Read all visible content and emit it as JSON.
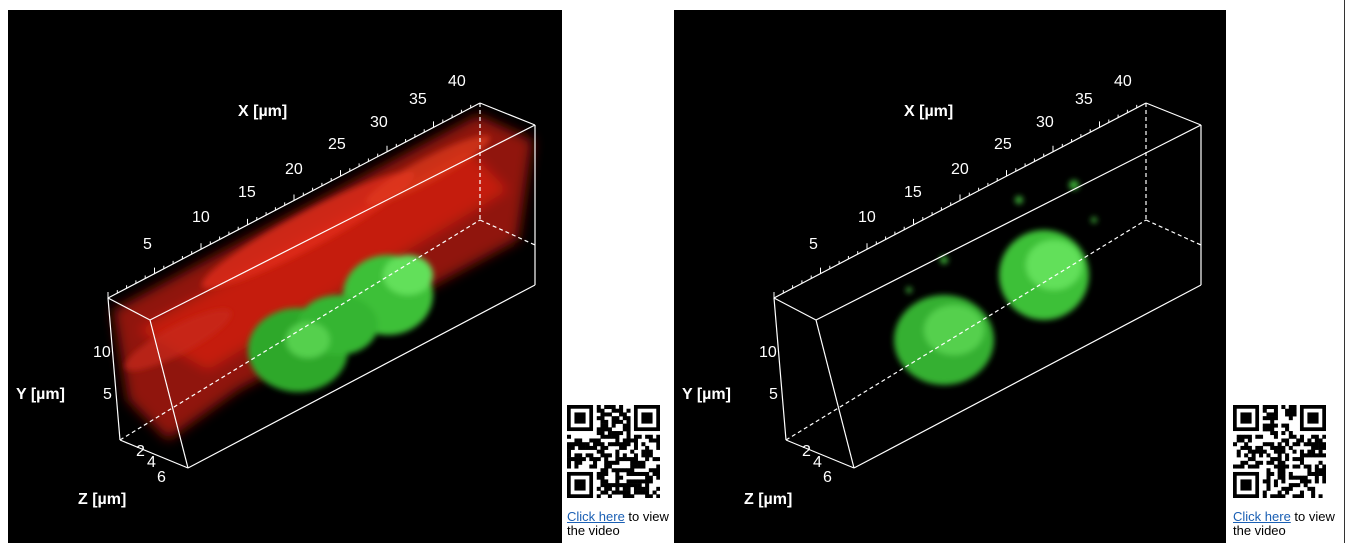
{
  "panels": [
    {
      "x_axis_label": "X [µm]",
      "x_ticks": [
        "5",
        "10",
        "15",
        "20",
        "25",
        "30",
        "35",
        "40"
      ],
      "y_axis_label": "Y [µm]",
      "y_ticks": [
        "5",
        "10"
      ],
      "z_axis_label": "Z [µm]",
      "z_ticks": [
        "2",
        "4",
        "6"
      ],
      "link_text": "Click here",
      "link_suffix": "to view the video"
    },
    {
      "x_axis_label": "X [µm]",
      "x_ticks": [
        "5",
        "10",
        "15",
        "20",
        "25",
        "30",
        "35",
        "40"
      ],
      "y_axis_label": "Y [µm]",
      "y_ticks": [
        "5",
        "10"
      ],
      "z_axis_label": "Z [µm]",
      "z_ticks": [
        "2",
        "4",
        "6"
      ],
      "link_text": "Click here",
      "link_suffix": "to view the video"
    }
  ]
}
